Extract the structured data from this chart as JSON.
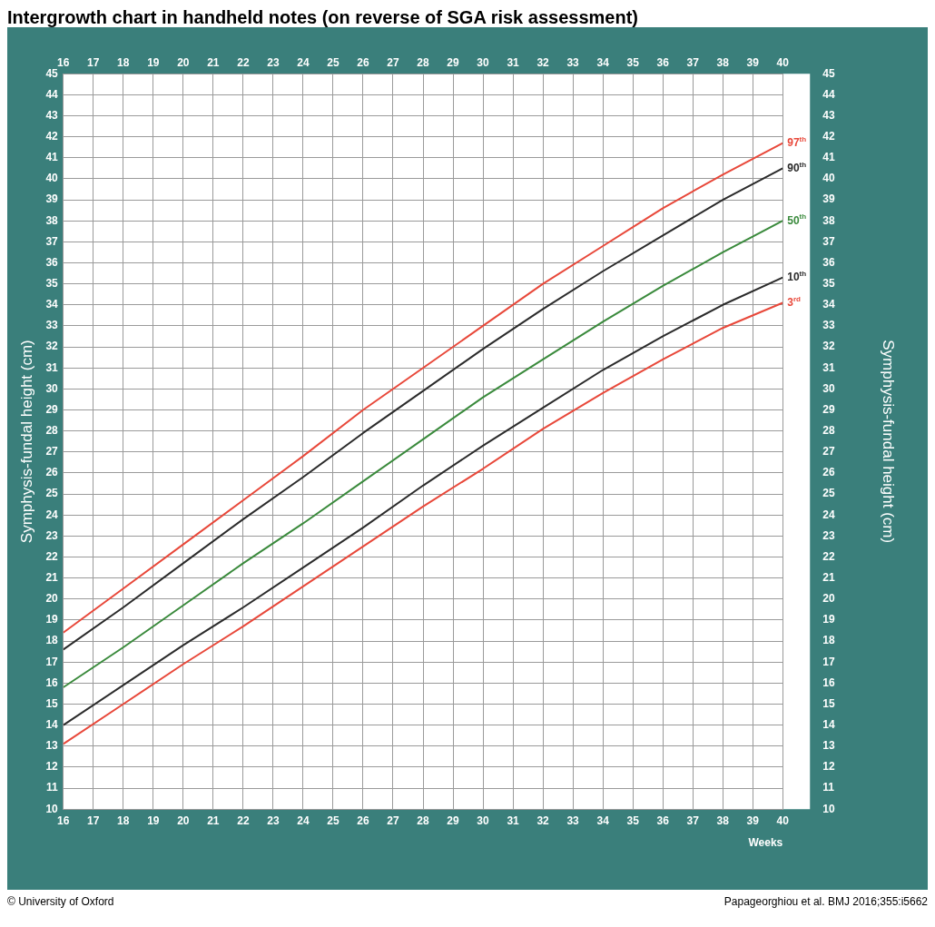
{
  "chart_data": {
    "type": "line",
    "title": "Intergrowth chart in handheld notes (on reverse of SGA risk assessment)",
    "xlabel": "Weeks",
    "ylabel": "Symphysis-fundal height (cm)",
    "y2label": "Symphysis-fundal height (cm)",
    "x": [
      16,
      18,
      20,
      22,
      24,
      26,
      28,
      30,
      32,
      34,
      36,
      38,
      40
    ],
    "series": [
      {
        "name": "97$^{th}$",
        "color": "#e8483a",
        "values": [
          18.4,
          20.5,
          22.6,
          24.7,
          26.8,
          29.0,
          31.0,
          33.0,
          35.0,
          36.8,
          38.6,
          40.2,
          41.7
        ]
      },
      {
        "name": "90$^{th}$",
        "color": "#2b2b2b",
        "values": [
          17.6,
          19.6,
          21.7,
          23.8,
          25.8,
          27.9,
          29.9,
          31.9,
          33.8,
          35.6,
          37.3,
          39.0,
          40.5
        ]
      },
      {
        "name": "50$^{th}$",
        "color": "#3a8a3c",
        "values": [
          15.8,
          17.7,
          19.7,
          21.7,
          23.6,
          25.6,
          27.6,
          29.6,
          31.4,
          33.2,
          34.9,
          36.5,
          38.0
        ]
      },
      {
        "name": "10$^{th}$",
        "color": "#2b2b2b",
        "values": [
          14.0,
          15.9,
          17.8,
          19.6,
          21.5,
          23.4,
          25.4,
          27.3,
          29.1,
          30.9,
          32.5,
          34.0,
          35.3
        ]
      },
      {
        "name": "3$^{rd}$",
        "color": "#e8483a",
        "values": [
          13.1,
          15.0,
          16.9,
          18.7,
          20.6,
          22.5,
          24.4,
          26.2,
          28.1,
          29.8,
          31.4,
          32.9,
          34.1
        ]
      }
    ],
    "xlim": [
      16,
      40
    ],
    "xticks": [
      16,
      17,
      18,
      19,
      20,
      21,
      22,
      23,
      24,
      25,
      26,
      27,
      28,
      29,
      30,
      31,
      32,
      33,
      34,
      35,
      36,
      37,
      38,
      39,
      40
    ],
    "x2lim": [
      16,
      40
    ],
    "x2ticks": [
      16,
      17,
      18,
      19,
      20,
      21,
      22,
      23,
      24,
      25,
      26,
      27,
      28,
      29,
      30,
      31,
      32,
      33,
      34,
      35,
      36,
      37,
      38,
      39,
      40
    ],
    "ylim": [
      10,
      45
    ],
    "yticks": [
      10,
      11,
      12,
      13,
      14,
      15,
      16,
      17,
      18,
      19,
      20,
      21,
      22,
      23,
      24,
      25,
      26,
      27,
      28,
      29,
      30,
      31,
      32,
      33,
      34,
      35,
      36,
      37,
      38,
      39,
      40,
      41,
      42,
      43,
      44,
      45
    ],
    "y2lim": [
      10,
      45
    ],
    "y2ticks": [
      10,
      11,
      12,
      13,
      14,
      15,
      16,
      17,
      18,
      19,
      20,
      21,
      22,
      23,
      24,
      25,
      26,
      27,
      28,
      29,
      30,
      31,
      32,
      33,
      34,
      35,
      36,
      37,
      38,
      39,
      40,
      41,
      42,
      43,
      44,
      45
    ],
    "grid": true,
    "legend": false,
    "marker": "none",
    "line_style": "solid",
    "annotations": [
      "© University of Oxford",
      "Papageorghiou et al. BMJ 2016;355:i5662"
    ]
  }
}
